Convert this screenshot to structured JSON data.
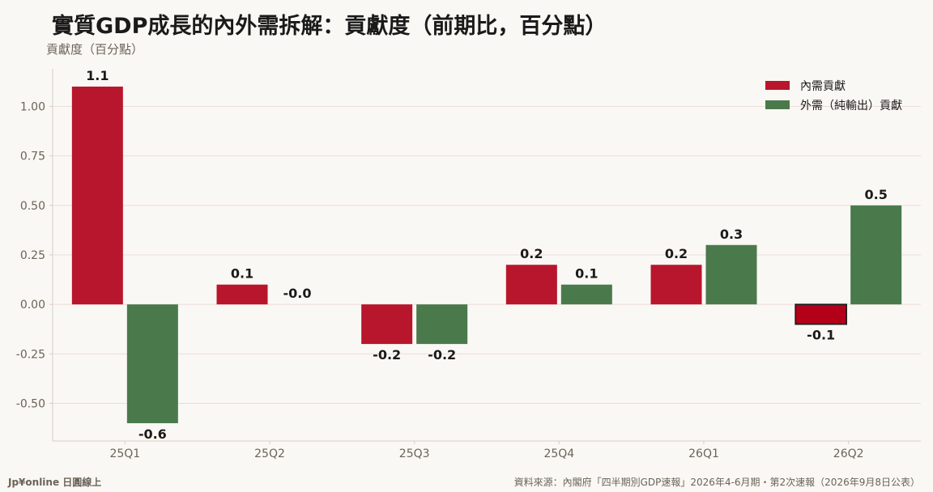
{
  "header": {
    "title": "實質GDP成長的內外需拆解：貢獻度（前期比，百分點）",
    "ylabel": "貢獻度（百分點）"
  },
  "footer": {
    "brand": "Jp¥online 日圓線上",
    "source": "資料來源：內閣府「四半期別GDP速報」2026年4-6月期・第2次速報（2026年9月8日公表）"
  },
  "chart_data": {
    "type": "bar",
    "categories": [
      "25Q1",
      "25Q2",
      "25Q3",
      "25Q4",
      "26Q1",
      "26Q2"
    ],
    "series": [
      {
        "name": "內需貢獻",
        "color": "#b8162c",
        "values": [
          1.1,
          0.1,
          -0.2,
          0.2,
          0.2,
          -0.1
        ],
        "labels": [
          "1.1",
          "0.1",
          "-0.2",
          "0.2",
          "0.2",
          "-0.1"
        ]
      },
      {
        "name": "外需（純輸出）貢獻",
        "color": "#4a7a4c",
        "values": [
          -0.6,
          -0.0,
          -0.2,
          0.1,
          0.3,
          0.5
        ],
        "labels": [
          "-0.6",
          "-0.0",
          "-0.2",
          "0.1",
          "0.3",
          "0.5"
        ]
      }
    ],
    "highlight": {
      "series": 0,
      "index": 5,
      "color": "#b30018",
      "edge": "#1a1a1a"
    },
    "yticks": [
      1.0,
      0.75,
      0.5,
      0.25,
      0.0,
      -0.25,
      -0.5
    ],
    "ytick_labels": [
      "1.00",
      "0.75",
      "0.50",
      "0.25",
      "0.00",
      "-0.25",
      "-0.50"
    ],
    "ylim": [
      -0.69,
      1.19
    ],
    "grid": true,
    "legend_position": "top-right",
    "colors": {
      "grid": "#ecdcd8",
      "axis": "#d7cfc2",
      "text": "#1a1a1a",
      "muted": "#6b6358"
    }
  }
}
